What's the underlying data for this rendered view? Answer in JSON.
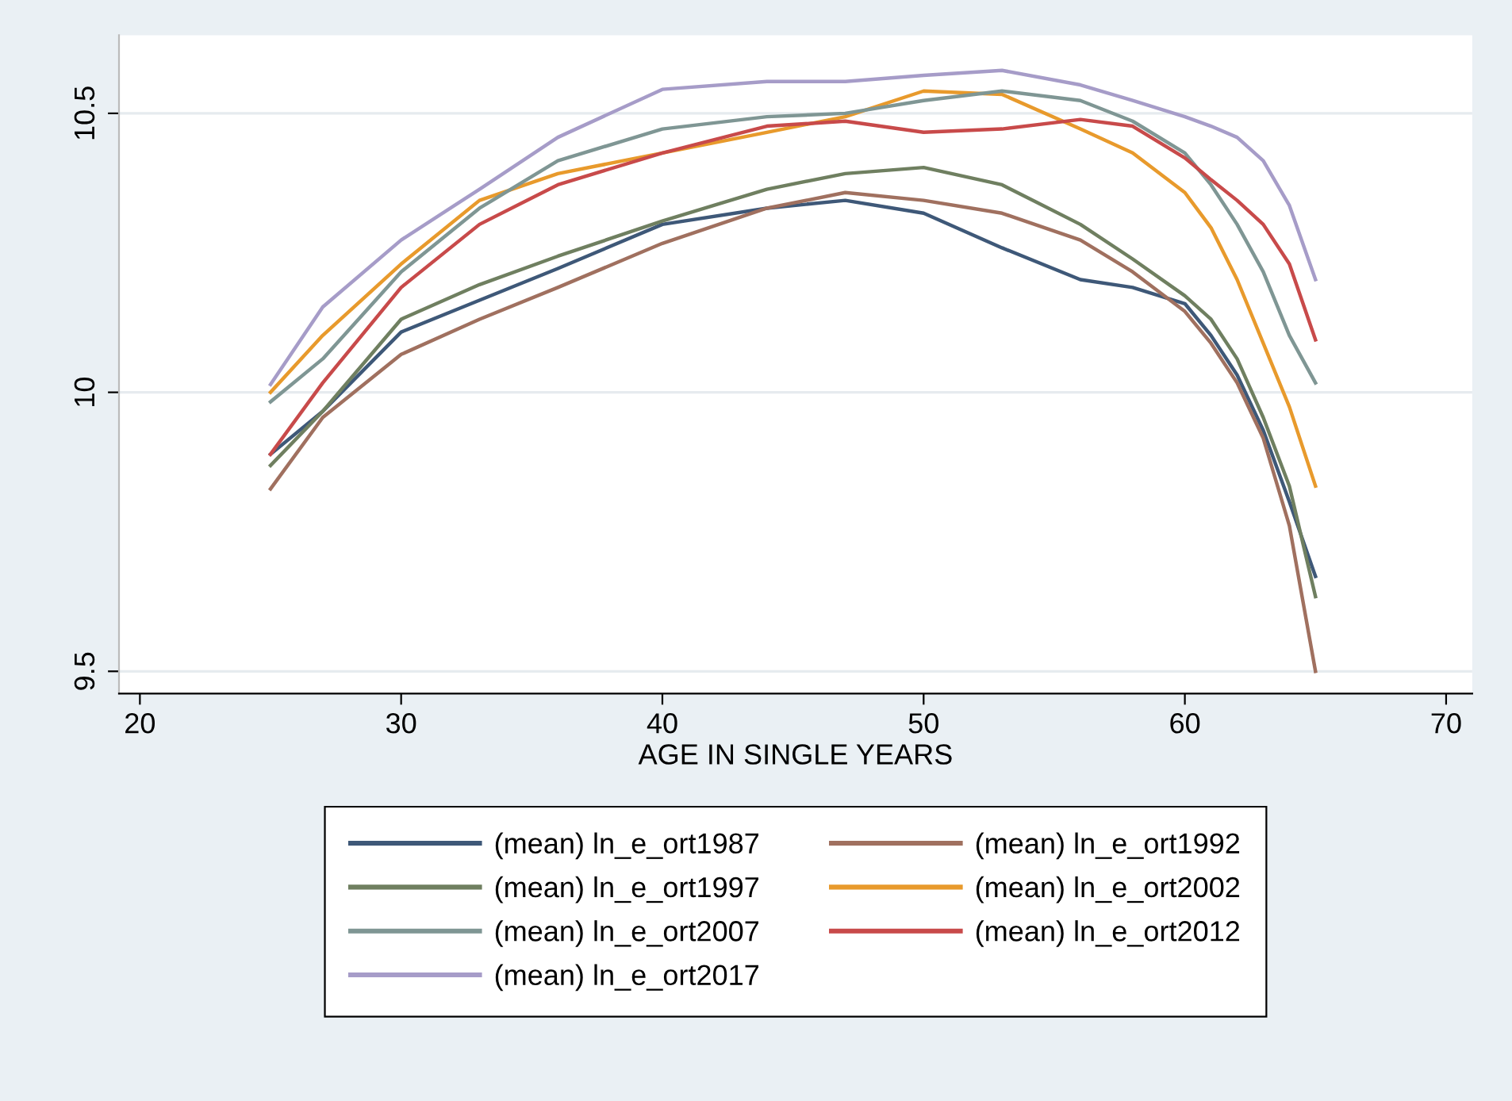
{
  "chart_data": {
    "type": "line",
    "xlabel": "AGE IN SINGLE YEARS",
    "x": [
      25,
      27,
      30,
      33,
      36,
      40,
      44,
      47,
      50,
      53,
      56,
      58,
      60,
      61,
      62,
      63,
      64,
      65
    ],
    "xlim": [
      19.2,
      71
    ],
    "xticks": [
      20,
      30,
      40,
      50,
      60,
      70
    ],
    "ylim": [
      9.46,
      10.64
    ],
    "yticks": [
      9.5,
      10,
      10.5
    ],
    "grid": "y",
    "legend": "bottom",
    "marker": "none",
    "line_style": "solid",
    "series": [
      {
        "name": "(mean) ln_e_ort1987",
        "color": "#3e5878",
        "values": [
          9.889,
          9.966,
          10.108,
          10.165,
          10.222,
          10.301,
          10.33,
          10.344,
          10.321,
          10.259,
          10.202,
          10.188,
          10.159,
          10.102,
          10.031,
          9.932,
          9.804,
          9.67
        ]
      },
      {
        "name": "(mean) ln_e_ort1992",
        "color": "#a0705f",
        "values": [
          9.827,
          9.955,
          10.068,
          10.131,
          10.188,
          10.267,
          10.33,
          10.358,
          10.344,
          10.321,
          10.273,
          10.216,
          10.145,
          10.088,
          10.017,
          9.918,
          9.761,
          9.5
        ]
      },
      {
        "name": "(mean) ln_e_ort1997",
        "color": "#6f7f60",
        "values": [
          9.869,
          9.966,
          10.131,
          10.193,
          10.244,
          10.307,
          10.364,
          10.392,
          10.403,
          10.372,
          10.301,
          10.239,
          10.173,
          10.131,
          10.06,
          9.955,
          9.832,
          9.634
        ]
      },
      {
        "name": "(mean) ln_e_ort2002",
        "color": "#e89a2c",
        "values": [
          10.0,
          10.102,
          10.23,
          10.344,
          10.392,
          10.429,
          10.466,
          10.494,
          10.54,
          10.534,
          10.472,
          10.429,
          10.358,
          10.295,
          10.202,
          10.088,
          9.974,
          9.832
        ]
      },
      {
        "name": "(mean) ln_e_ort2007",
        "color": "#7f9694",
        "values": [
          9.983,
          10.06,
          10.216,
          10.33,
          10.415,
          10.472,
          10.494,
          10.5,
          10.523,
          10.54,
          10.523,
          10.486,
          10.429,
          10.372,
          10.301,
          10.216,
          10.102,
          10.017
        ]
      },
      {
        "name": "(mean) ln_e_ort2012",
        "color": "#c84a4a",
        "values": [
          9.889,
          10.017,
          10.188,
          10.301,
          10.372,
          10.429,
          10.477,
          10.486,
          10.466,
          10.472,
          10.489,
          10.477,
          10.42,
          10.381,
          10.344,
          10.301,
          10.23,
          10.094
        ]
      },
      {
        "name": "(mean) ln_e_ort2017",
        "color": "#a69cc8",
        "values": [
          10.014,
          10.153,
          10.273,
          10.364,
          10.457,
          10.543,
          10.557,
          10.557,
          10.568,
          10.577,
          10.551,
          10.523,
          10.494,
          10.477,
          10.457,
          10.415,
          10.335,
          10.202
        ]
      }
    ]
  }
}
